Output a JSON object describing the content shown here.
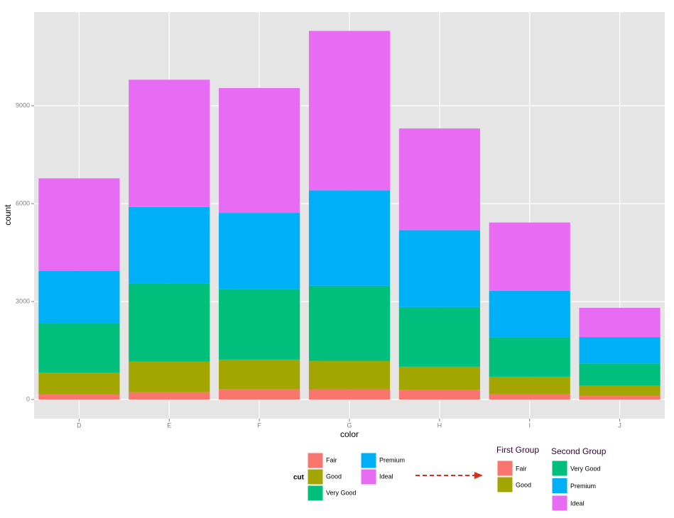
{
  "chart_data": {
    "type": "stacked_bar",
    "x_label": "color",
    "y_label": "count",
    "categories": [
      "D",
      "E",
      "F",
      "G",
      "H",
      "I",
      "J"
    ],
    "series": [
      {
        "name": "Fair",
        "color": "#F8766D",
        "values": [
          163,
          224,
          312,
          314,
          303,
          175,
          119
        ]
      },
      {
        "name": "Good",
        "color": "#A3A500",
        "values": [
          662,
          933,
          909,
          871,
          702,
          522,
          307
        ]
      },
      {
        "name": "Very Good",
        "color": "#00BF7D",
        "values": [
          1513,
          2400,
          2164,
          2299,
          1824,
          1204,
          678
        ]
      },
      {
        "name": "Premium",
        "color": "#00B0F6",
        "values": [
          1603,
          2337,
          2331,
          2924,
          2360,
          1428,
          808
        ]
      },
      {
        "name": "Ideal",
        "color": "#E76BF3",
        "values": [
          2834,
          3903,
          3826,
          4884,
          3115,
          2093,
          896
        ]
      }
    ],
    "ylim": [
      -587,
      11870
    ],
    "yticks": [
      0,
      3000,
      6000,
      9000
    ],
    "grid": true,
    "legend_title": "cut",
    "legend_groups": [
      {
        "title": "First Group",
        "items": [
          "Fair",
          "Good"
        ]
      },
      {
        "title": "Second Group",
        "items": [
          "Very Good",
          "Premium",
          "Ideal"
        ]
      }
    ]
  }
}
